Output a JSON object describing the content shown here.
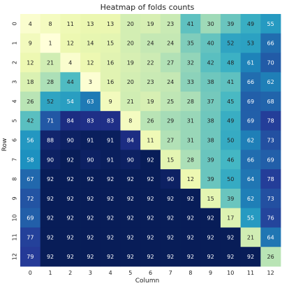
{
  "chart_data": {
    "type": "heatmap",
    "title": "Heatmap of folds counts",
    "xlabel": "Column",
    "ylabel": "Row",
    "x_categories": [
      "0",
      "1",
      "2",
      "3",
      "4",
      "5",
      "6",
      "7",
      "8",
      "9",
      "10",
      "11",
      "12"
    ],
    "y_categories": [
      "0",
      "1",
      "2",
      "3",
      "4",
      "5",
      "6",
      "7",
      "8",
      "9",
      "10",
      "11",
      "12"
    ],
    "values": [
      [
        4,
        8,
        11,
        13,
        13,
        20,
        19,
        23,
        41,
        30,
        39,
        49,
        55
      ],
      [
        9,
        1,
        12,
        14,
        15,
        20,
        24,
        24,
        35,
        40,
        52,
        53,
        66
      ],
      [
        12,
        21,
        4,
        12,
        16,
        19,
        22,
        27,
        32,
        42,
        48,
        61,
        70
      ],
      [
        18,
        28,
        44,
        3,
        16,
        20,
        23,
        24,
        33,
        38,
        41,
        66,
        62
      ],
      [
        26,
        52,
        54,
        63,
        9,
        21,
        19,
        25,
        28,
        37,
        45,
        69,
        68
      ],
      [
        42,
        71,
        84,
        83,
        83,
        8,
        26,
        29,
        31,
        38,
        49,
        69,
        78
      ],
      [
        56,
        88,
        90,
        91,
        91,
        84,
        11,
        27,
        31,
        38,
        50,
        62,
        73
      ],
      [
        58,
        90,
        92,
        90,
        91,
        90,
        92,
        15,
        28,
        39,
        46,
        66,
        69
      ],
      [
        67,
        92,
        92,
        92,
        92,
        92,
        92,
        90,
        12,
        39,
        50,
        64,
        78
      ],
      [
        72,
        92,
        92,
        92,
        92,
        92,
        92,
        92,
        92,
        15,
        39,
        62,
        73
      ],
      [
        69,
        92,
        92,
        92,
        92,
        92,
        92,
        92,
        92,
        92,
        17,
        55,
        76
      ],
      [
        77,
        92,
        92,
        92,
        92,
        92,
        92,
        92,
        92,
        92,
        92,
        21,
        64
      ],
      [
        79,
        92,
        92,
        92,
        92,
        92,
        92,
        92,
        92,
        92,
        92,
        92,
        26
      ]
    ],
    "colormap": "YlGnBu",
    "value_range": [
      1,
      92
    ],
    "colorbar": false,
    "annotated": true
  }
}
